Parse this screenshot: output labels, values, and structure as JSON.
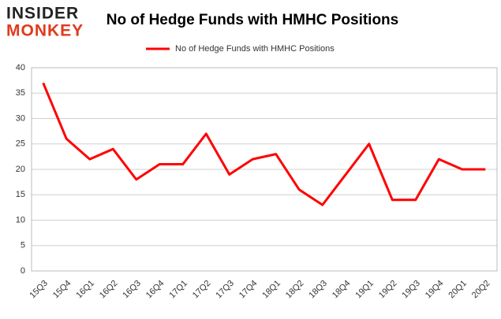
{
  "logo": {
    "top": "INSIDER",
    "bottom": "MONKEY"
  },
  "chart_data": {
    "type": "line",
    "title": "No of Hedge Funds with HMHC Positions",
    "categories": [
      "15Q3",
      "15Q4",
      "16Q1",
      "16Q2",
      "16Q3",
      "16Q4",
      "17Q1",
      "17Q2",
      "17Q3",
      "17Q4",
      "18Q1",
      "18Q2",
      "18Q3",
      "18Q4",
      "19Q1",
      "19Q2",
      "19Q3",
      "19Q4",
      "20Q1",
      "20Q2"
    ],
    "series": [
      {
        "name": "No of Hedge Funds with HMHC Positions",
        "color": "#ff0000",
        "values": [
          37,
          26,
          22,
          24,
          18,
          21,
          21,
          27,
          19,
          22,
          23,
          16,
          13,
          19,
          25,
          14,
          14,
          22,
          20,
          20
        ]
      }
    ],
    "ylim": [
      0,
      40
    ],
    "yticks": [
      0,
      5,
      10,
      15,
      20,
      25,
      30,
      35,
      40
    ],
    "grid": true,
    "legend": "top"
  }
}
